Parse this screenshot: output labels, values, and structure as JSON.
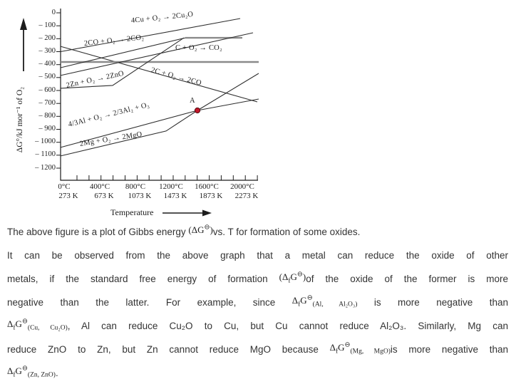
{
  "figure": {
    "y_axis": {
      "title": "ΔG°/kJ mor⁻¹ of O₂",
      "tick_labels": [
        "0",
        "– 100",
        "– 200",
        "– 300",
        "– 400",
        "– 500",
        "– 600",
        "– 700",
        "– 800",
        "– 900",
        "– 1000",
        "– 1100",
        "– 1200"
      ],
      "tick_values": [
        0,
        -100,
        -200,
        -300,
        -400,
        -500,
        -600,
        -700,
        -800,
        -900,
        -1000,
        -1100,
        -1200
      ]
    },
    "x_axis": {
      "title": "Temperature",
      "ticks": [
        {
          "c": "0°C",
          "k": "273 K",
          "t": 0
        },
        {
          "c": "400°C",
          "k": "673 K",
          "t": 400
        },
        {
          "c": "800°C",
          "k": "1073 K",
          "t": 800
        },
        {
          "c": "1200°C",
          "k": "1473 K",
          "t": 1200
        },
        {
          "c": "1600°C",
          "k": "1873 K",
          "t": 1600
        },
        {
          "c": "2000°C",
          "k": "2273 K",
          "t": 2000
        }
      ]
    },
    "point_a": {
      "label": "A",
      "t": 1496,
      "g": -754
    },
    "colors": {
      "line": "#2f2f2f",
      "thick_line": "#8a8a8a",
      "point_a_fill": "#c2182b",
      "point_a_stroke": "#55090e"
    },
    "chart_data": {
      "type": "line",
      "xlabel": "Temperature",
      "ylabel": "ΔG°/kJ mor⁻¹ of O₂",
      "xlim": [
        -40,
        2200
      ],
      "ylim": [
        -1250,
        0
      ],
      "x_tick_units": [
        "°C",
        "K"
      ],
      "series": [
        {
          "name": "4Cu + O₂ → 2Cu₂O",
          "style": "dark",
          "points": [
            [
              -40,
              -300
            ],
            [
              1976,
              -44
            ]
          ]
        },
        {
          "name": "2C + O₂ → 2CO",
          "style": "dark",
          "points": [
            [
              -40,
              -259
            ],
            [
              2168,
              -688
            ]
          ]
        },
        {
          "name": "C + O₂ → CO₂",
          "style": "thick",
          "points": [
            [
              -40,
              -380
            ],
            [
              2184,
              -380
            ]
          ]
        },
        {
          "name": "2CO + O₂ → 2CO₂",
          "style": "dark",
          "points": [
            [
              -40,
              -424
            ],
            [
              1360,
              -193
            ]
          ]
        },
        {
          "name": "2CO + O₂ → 2CO₂ (level part)",
          "style": "thick",
          "points": [
            [
              1360,
              -193
            ],
            [
              2000,
              -193
            ]
          ]
        },
        {
          "name": "unlabeled-line",
          "style": "dark",
          "points": [
            [
              -40,
              -484
            ],
            [
              2120,
              -154
            ]
          ]
        },
        {
          "name": "2Zn + O₂ → 2ZnO",
          "style": "dark",
          "points": [
            [
              -40,
              -583
            ],
            [
              544,
              -561
            ],
            [
              1344,
              -193
            ]
          ]
        },
        {
          "name": "4/3Al + O₂ → 2/3Al₂ + O₃",
          "style": "dark",
          "points": [
            [
              -40,
              -1040
            ],
            [
              1496,
              -754
            ],
            [
              2184,
              -666
            ]
          ]
        },
        {
          "name": "2Mg + O₂ → 2MgO",
          "style": "dark",
          "points": [
            [
              -40,
              -1106
            ],
            [
              1144,
              -913
            ],
            [
              1496,
              -754
            ],
            [
              2184,
              -468
            ]
          ]
        }
      ],
      "annotations": [
        {
          "label": "A",
          "x": 1496,
          "y": -754
        }
      ]
    }
  },
  "text": {
    "line1_pre": "The above figure is a plot of Gibbs energy ",
    "line1_post": "vs. T for formation of some oxides.",
    "line2": "It can be observed from the above graph that a metal can reduce the oxide of other",
    "line3_pre": "metals, if the standard free energy of formation ",
    "line3_post": "of the oxide of the former is more",
    "line4_pre": "negative than the latter. For example, since ",
    "line4_post": " is more negative than",
    "line5_post": ", Al can reduce Cu₂O to Cu, but Cu cannot reduce Al₂O₃. Similarly, Mg can",
    "line6_pre": "reduce ZnO to Zn, but Zn cannot reduce MgO because ",
    "line6_post": "is more negative than",
    "line7_post": ".",
    "formulas": {
      "g_std": {
        "pre": "(ΔG",
        "circ": "⊖",
        "post": ")"
      },
      "fg_std": {
        "pre": "(Δ",
        "sub_f": "f",
        "sym": "G",
        "circ": "⊖",
        "post": ")"
      },
      "al": {
        "delta": "Δ",
        "sub_f": "f",
        "sym": "G",
        "circ": "⊖",
        "sub": "(Al, Al₂O₃)"
      },
      "cu": {
        "delta": "Δ",
        "sub_f": "f",
        "sym": "G",
        "circ": "⊖",
        "sub": "(Cu, Cu₂O)"
      },
      "mg": {
        "delta": "Δ",
        "sub_f": "f",
        "sym": "G",
        "circ": "⊖",
        "sub": "(Mg, MgO)"
      },
      "zn": {
        "delta": "Δ",
        "sub_f": "f",
        "sym": "G",
        "circ": "⊖",
        "sub": "(Zn, ZnO)"
      }
    }
  }
}
